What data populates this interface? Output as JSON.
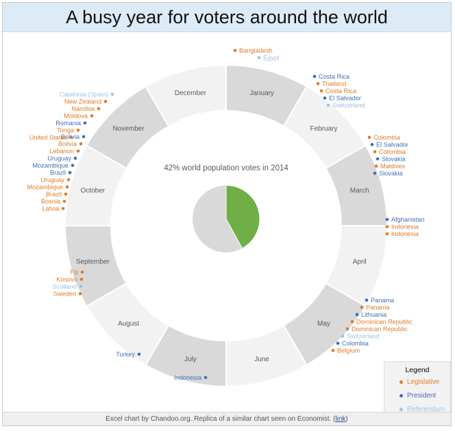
{
  "title": "A busy year for voters around the world",
  "footer": {
    "text": "Excel chart by Chandoo.org. Replica of a similar chart seen on Economist. (",
    "link": "link",
    "close": ")"
  },
  "colors": {
    "legislative": "#e07b27",
    "president": "#3f6fb5",
    "referendum": "#9dc3e6",
    "month_dark": "#d9d9d9",
    "month_light": "#f2f2f2",
    "pie_green": "#6faf46",
    "pie_gray": "#d9d9d9"
  },
  "legend": {
    "title": "Legend",
    "items": [
      {
        "label": "Legislative",
        "type": "legislative"
      },
      {
        "label": "President",
        "type": "president"
      },
      {
        "label": "Referendum",
        "type": "referendum"
      }
    ]
  },
  "chart_data": {
    "type": "pie",
    "center_label": "42% world population votes in 2014",
    "world_pie": {
      "votes_share": 0.42
    },
    "months": [
      "January",
      "February",
      "March",
      "April",
      "May",
      "June",
      "July",
      "August",
      "September",
      "October",
      "November",
      "December"
    ],
    "elections": [
      {
        "month": "January",
        "country": "Bangladesh",
        "type": "legislative"
      },
      {
        "month": "January",
        "country": "Egypt",
        "type": "referendum"
      },
      {
        "month": "February",
        "country": "Costa Rica",
        "type": "president"
      },
      {
        "month": "February",
        "country": "Thailand",
        "type": "legislative"
      },
      {
        "month": "February",
        "country": "Costa Rica",
        "type": "legislative"
      },
      {
        "month": "February",
        "country": "El Salvador",
        "type": "president"
      },
      {
        "month": "February",
        "country": "Switzerland",
        "type": "referendum"
      },
      {
        "month": "March",
        "country": "Colombia",
        "type": "legislative"
      },
      {
        "month": "March",
        "country": "El Salvador",
        "type": "president"
      },
      {
        "month": "March",
        "country": "Colombia",
        "type": "legislative"
      },
      {
        "month": "March",
        "country": "Slovakia",
        "type": "president"
      },
      {
        "month": "March",
        "country": "Maldives",
        "type": "legislative"
      },
      {
        "month": "March",
        "country": "Slovakia",
        "type": "president"
      },
      {
        "month": "April",
        "country": "Afghanistan",
        "type": "president"
      },
      {
        "month": "April",
        "country": "Indonesia",
        "type": "legislative"
      },
      {
        "month": "April",
        "country": "Indonesia",
        "type": "legislative"
      },
      {
        "month": "May",
        "country": "Panama",
        "type": "president"
      },
      {
        "month": "May",
        "country": "Panama",
        "type": "legislative"
      },
      {
        "month": "May",
        "country": "Lithuania",
        "type": "president"
      },
      {
        "month": "May",
        "country": "Dominican Republic",
        "type": "legislative"
      },
      {
        "month": "May",
        "country": "Dominican Republic",
        "type": "legislative"
      },
      {
        "month": "May",
        "country": "Switzerland",
        "type": "referendum"
      },
      {
        "month": "May",
        "country": "Colombia",
        "type": "president"
      },
      {
        "month": "May",
        "country": "Belgium",
        "type": "legislative"
      },
      {
        "month": "July",
        "country": "Indonesia",
        "type": "president"
      },
      {
        "month": "August",
        "country": "Turkey",
        "type": "president"
      },
      {
        "month": "September",
        "country": "Fiji",
        "type": "legislative"
      },
      {
        "month": "September",
        "country": "Kosovo",
        "type": "legislative"
      },
      {
        "month": "September",
        "country": "Scotland",
        "type": "referendum"
      },
      {
        "month": "September",
        "country": "Sweden",
        "type": "legislative"
      },
      {
        "month": "October",
        "country": "Bolivia",
        "type": "president"
      },
      {
        "month": "October",
        "country": "Bolivia",
        "type": "legislative"
      },
      {
        "month": "October",
        "country": "Lebanon",
        "type": "legislative"
      },
      {
        "month": "October",
        "country": "Uruguay",
        "type": "president"
      },
      {
        "month": "October",
        "country": "Mozambique",
        "type": "president"
      },
      {
        "month": "October",
        "country": "Brazil",
        "type": "president"
      },
      {
        "month": "October",
        "country": "Uruguay",
        "type": "legislative"
      },
      {
        "month": "October",
        "country": "Mozambique",
        "type": "legislative"
      },
      {
        "month": "October",
        "country": "Brazil",
        "type": "legislative"
      },
      {
        "month": "October",
        "country": "Bosnia",
        "type": "legislative"
      },
      {
        "month": "October",
        "country": "Latvia",
        "type": "legislative"
      },
      {
        "month": "November",
        "country": "Catalonia (Spain)",
        "type": "referendum"
      },
      {
        "month": "November",
        "country": "New Zealand",
        "type": "legislative"
      },
      {
        "month": "November",
        "country": "Namibia",
        "type": "legislative"
      },
      {
        "month": "November",
        "country": "Moldova",
        "type": "legislative"
      },
      {
        "month": "November",
        "country": "Romania",
        "type": "president"
      },
      {
        "month": "November",
        "country": "Tonga",
        "type": "legislative"
      },
      {
        "month": "November",
        "country": "United States",
        "type": "legislative"
      }
    ]
  }
}
